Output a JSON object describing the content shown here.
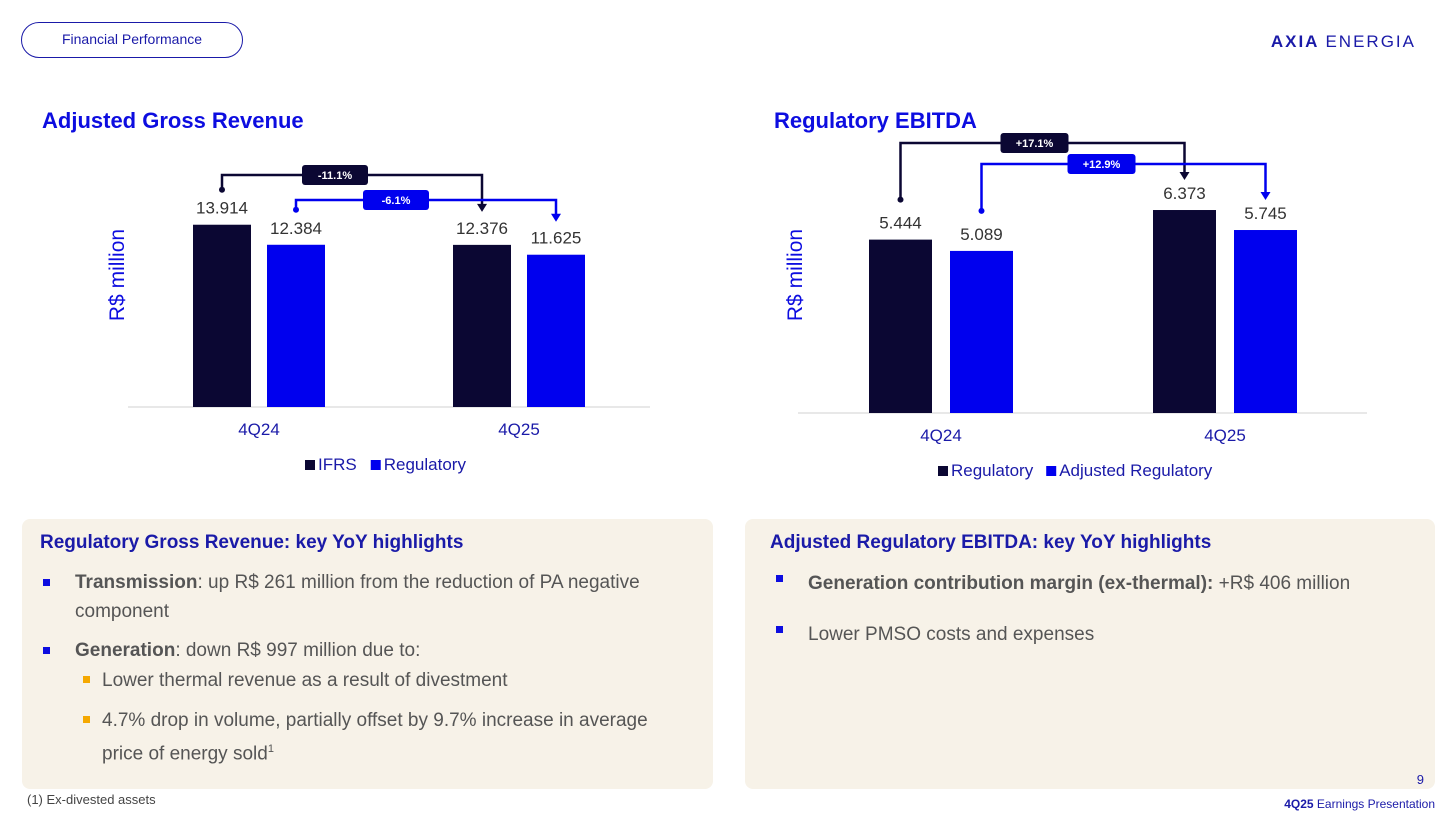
{
  "header": {
    "section_label": "Financial Performance",
    "logo_bold": "AXIA",
    "logo_light": "ENERGIA"
  },
  "chart_data": [
    {
      "type": "bar",
      "title": "Adjusted Gross Revenue",
      "ylabel": "R$ million",
      "categories": [
        "4Q24",
        "4Q25"
      ],
      "series": [
        {
          "name": "IFRS",
          "values": [
            13914,
            12376
          ],
          "labels": [
            "13.914",
            "12.376"
          ]
        },
        {
          "name": "Regulatory",
          "values": [
            12384,
            11625
          ],
          "labels": [
            "12.384",
            "11.625"
          ]
        }
      ],
      "ylim": [
        0,
        15000
      ],
      "annotations": [
        {
          "series": "IFRS",
          "text": "-11.1%"
        },
        {
          "series": "Regulatory",
          "text": "-6.1%"
        }
      ],
      "legend": "bottom"
    },
    {
      "type": "bar",
      "title": "Regulatory EBITDA",
      "ylabel": "R$ million",
      "categories": [
        "4Q24",
        "4Q25"
      ],
      "series": [
        {
          "name": "Regulatory",
          "values": [
            5444,
            6373
          ],
          "labels": [
            "5.444",
            "6.373"
          ]
        },
        {
          "name": "Adjusted Regulatory",
          "values": [
            5089,
            5745
          ],
          "labels": [
            "5.089",
            "5.745"
          ]
        }
      ],
      "ylim": [
        0,
        7000
      ],
      "annotations": [
        {
          "series": "Regulatory",
          "text": "+17.1%"
        },
        {
          "series": "Adjusted Regulatory",
          "text": "+12.9%"
        }
      ],
      "legend": "bottom"
    }
  ],
  "left_panel": {
    "title": "Regulatory Gross Revenue: key YoY highlights",
    "b1_bold": "Transmission",
    "b1_text": ": up R$ 261 million from the reduction of PA negative component",
    "b2_bold": "Generation",
    "b2_text": ": down R$ 997 million due to:",
    "s1": "Lower thermal revenue as a result of divestment",
    "s2": "4.7% drop in volume, partially offset by 9.7% increase in average price of energy sold",
    "s2_sup": "1"
  },
  "right_panel": {
    "title": "Adjusted Regulatory EBITDA: key YoY highlights",
    "b1_bold": "Generation contribution margin (ex-thermal):",
    "b1_text": " +R$ 406 million",
    "b2_text": "Lower PMSO costs and expenses"
  },
  "footer": {
    "footnote": "(1) Ex-divested assets",
    "page_number": "9",
    "report_bold": "4Q25",
    "report_text": " Earnings Presentation"
  },
  "colors": {
    "dark": "#0b0733",
    "blue": "#0000ee",
    "title_blue": "#0d0de0",
    "panel_bg": "#f7f2e8",
    "sub_bullet": "#f5a800"
  }
}
